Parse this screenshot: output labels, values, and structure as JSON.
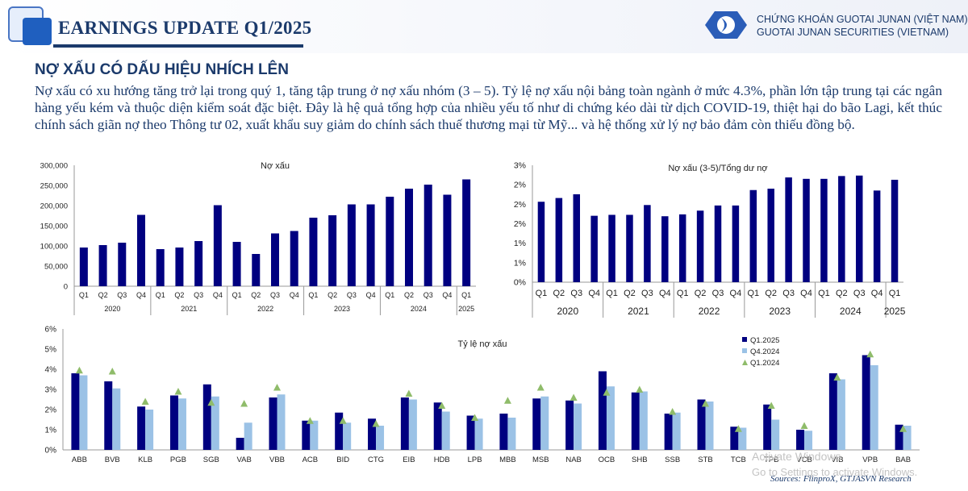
{
  "header": {
    "report_title": "EARNINGS UPDATE Q1/2025",
    "brand_line1": "CHỨNG KHOÁN GUOTAI JUNAN (VIỆT NAM)",
    "brand_line2": "GUOTAI JUNAN SECURITIES (VIETNAM)"
  },
  "section": {
    "title": "NỢ XẤU CÓ DẤU HIỆU NHÍCH LÊN",
    "body": "Nợ xấu có xu hướng tăng trở lại trong quý 1, tăng tập trung ở nợ xấu nhóm (3 – 5). Tỷ lệ nợ xấu nội bảng toàn ngành ở mức 4.3%, phần lớn tập trung tại các ngân hàng yếu kém và thuộc diện kiểm soát đặc biệt. Đây là hệ quả tổng hợp của nhiều yếu tố như di chứng kéo dài từ dịch COVID-19, thiệt hại do bão Lagi, kết thúc chính sách giãn nợ theo Thông tư 02, xuất khẩu suy giảm do chính sách thuế thương mại từ Mỹ... và hệ thống xử lý nợ bảo đảm còn thiếu đồng bộ."
  },
  "colors": {
    "navy": "#000080",
    "light_blue": "#9bc2e6",
    "green": "#8fbc6a",
    "text": "#1b3a6b"
  },
  "chart_data": [
    {
      "type": "bar",
      "title": "Nợ xấu",
      "quarters": [
        "Q1",
        "Q2",
        "Q3",
        "Q4",
        "Q1",
        "Q2",
        "Q3",
        "Q4",
        "Q1",
        "Q2",
        "Q3",
        "Q4",
        "Q1",
        "Q2",
        "Q3",
        "Q4",
        "Q1",
        "Q2",
        "Q3",
        "Q4",
        "Q1"
      ],
      "years": [
        "2020",
        "2021",
        "2022",
        "2023",
        "2024",
        "2025"
      ],
      "values": [
        96000,
        102000,
        108000,
        177000,
        92000,
        96000,
        112000,
        201000,
        110000,
        80000,
        131000,
        137000,
        170000,
        176000,
        203000,
        203000,
        222000,
        242000,
        252000,
        227000,
        265000
      ],
      "yticks": [
        "0",
        "50,000",
        "100,000",
        "150,000",
        "200,000",
        "250,000",
        "300,000"
      ],
      "ylim": [
        0,
        300000
      ]
    },
    {
      "type": "bar",
      "title": "Nợ xấu (3-5)/Tổng dư nợ",
      "quarters": [
        "Q1",
        "Q2",
        "Q3",
        "Q4",
        "Q1",
        "Q2",
        "Q3",
        "Q4",
        "Q1",
        "Q2",
        "Q3",
        "Q4",
        "Q1",
        "Q2",
        "Q3",
        "Q4",
        "Q1",
        "Q2",
        "Q3",
        "Q4",
        "Q1"
      ],
      "years": [
        "2020",
        "2021",
        "2022",
        "2023",
        "2024",
        "2025"
      ],
      "values": [
        1.72,
        1.8,
        1.88,
        1.42,
        1.44,
        1.44,
        1.65,
        1.41,
        1.45,
        1.53,
        1.64,
        1.64,
        1.97,
        2.0,
        2.24,
        2.21,
        2.21,
        2.27,
        2.28,
        1.96,
        2.19
      ],
      "yticks": [
        "0%",
        "1%",
        "1%",
        "2%",
        "2%",
        "2%",
        "3%"
      ],
      "ylim": [
        0,
        2.5
      ]
    },
    {
      "type": "bar",
      "title": "Tỷ lệ nợ xấu",
      "categories": [
        "ABB",
        "BVB",
        "KLB",
        "PGB",
        "SGB",
        "VAB",
        "VBB",
        "ACB",
        "BID",
        "CTG",
        "EIB",
        "HDB",
        "LPB",
        "MBB",
        "MSB",
        "NAB",
        "OCB",
        "SHB",
        "SSB",
        "STB",
        "TCB",
        "TPB",
        "VCB",
        "VIB",
        "VPB",
        "BAB"
      ],
      "series": [
        {
          "name": "Q1.2025",
          "values": [
            3.8,
            3.4,
            2.15,
            2.7,
            3.25,
            0.6,
            2.6,
            1.45,
            1.85,
            1.55,
            2.6,
            2.35,
            1.7,
            1.8,
            2.55,
            2.45,
            3.9,
            2.85,
            1.8,
            2.5,
            1.15,
            2.25,
            1.0,
            3.8,
            4.7,
            1.25
          ]
        },
        {
          "name": "Q4.2024",
          "values": [
            3.7,
            3.05,
            2.0,
            2.55,
            2.65,
            1.35,
            2.75,
            1.45,
            1.35,
            1.2,
            2.5,
            1.9,
            1.55,
            1.6,
            2.65,
            2.3,
            3.15,
            2.9,
            1.85,
            2.4,
            1.1,
            1.5,
            0.95,
            3.5,
            4.2,
            1.2
          ]
        },
        {
          "name": "Q1.2024",
          "values": [
            3.95,
            3.9,
            2.4,
            2.9,
            2.35,
            2.3,
            3.1,
            1.45,
            1.45,
            1.3,
            2.8,
            2.2,
            1.6,
            2.45,
            3.1,
            2.6,
            2.85,
            3.0,
            1.9,
            2.3,
            1.05,
            2.2,
            1.2,
            3.6,
            4.75,
            1.05
          ]
        }
      ],
      "yticks": [
        "0%",
        "1%",
        "2%",
        "3%",
        "4%",
        "5%",
        "6%"
      ],
      "ylim": [
        0,
        6
      ]
    }
  ],
  "watermark": {
    "line1": "Activate Windows",
    "line2": "Go to Settings to activate Windows."
  },
  "source": "Sources: FiinproX, GTJASVN Research"
}
